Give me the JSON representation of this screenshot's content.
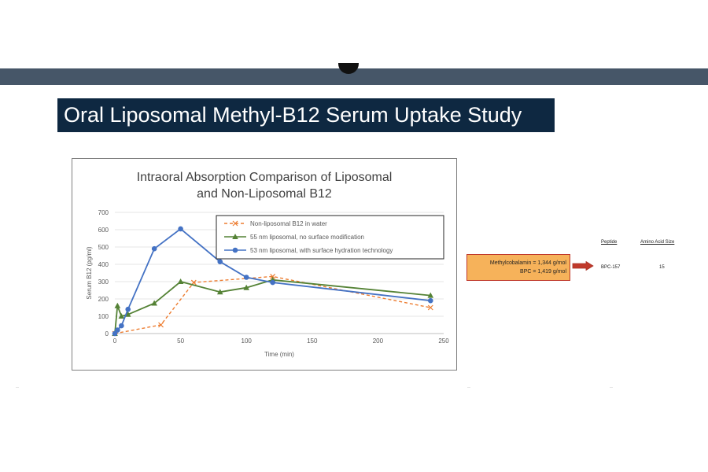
{
  "slide": {
    "title": "Oral Liposomal Methyl-B12 Serum Uptake Study"
  },
  "note": {
    "line1": "Methylcobalamin = 1,344 g/mol",
    "line2": "BPC = 1,419 g/mol"
  },
  "table": {
    "headers": [
      "Peptide",
      "Amino Acid Size"
    ],
    "rows": [
      [
        "BPC-157",
        "15"
      ]
    ]
  },
  "colors": {
    "title_bar": "#0e2841",
    "top_bar": "#465668",
    "note_fill": "#f6b25a",
    "note_border": "#c0392b"
  },
  "chart_data": {
    "type": "line",
    "title_lines": [
      "Intraoral Absorption Comparison of Liposomal",
      "and Non-Liposomal B12"
    ],
    "xlabel": "Time (min)",
    "ylabel": "Serum B12 (pg/ml)",
    "xlim": [
      0,
      250
    ],
    "ylim": [
      0,
      700
    ],
    "xticks": [
      0,
      50,
      100,
      150,
      200,
      250
    ],
    "yticks": [
      0,
      100,
      200,
      300,
      400,
      500,
      600,
      700
    ],
    "grid": "horizontal",
    "legend_position": "top-right",
    "series": [
      {
        "name": "Non-liposomal B12 in water",
        "color": "#ed7d31",
        "style": "dashed",
        "marker": "x",
        "points": [
          [
            0,
            0
          ],
          [
            35,
            50
          ],
          [
            60,
            295
          ],
          [
            120,
            330
          ],
          [
            240,
            150
          ]
        ]
      },
      {
        "name": "55 nm liposomal, no surface modification",
        "color": "#548235",
        "style": "solid",
        "marker": "triangle",
        "points": [
          [
            0,
            0
          ],
          [
            2,
            160
          ],
          [
            5,
            100
          ],
          [
            10,
            110
          ],
          [
            30,
            175
          ],
          [
            50,
            300
          ],
          [
            80,
            240
          ],
          [
            100,
            265
          ],
          [
            120,
            310
          ],
          [
            240,
            220
          ]
        ]
      },
      {
        "name": "53 nm liposomal, with surface hydration technology",
        "color": "#4472c4",
        "style": "solid",
        "marker": "circle",
        "points": [
          [
            0,
            0
          ],
          [
            2,
            20
          ],
          [
            5,
            45
          ],
          [
            10,
            140
          ],
          [
            30,
            490
          ],
          [
            50,
            605
          ],
          [
            80,
            415
          ],
          [
            100,
            325
          ],
          [
            120,
            295
          ],
          [
            240,
            190
          ]
        ]
      }
    ]
  }
}
